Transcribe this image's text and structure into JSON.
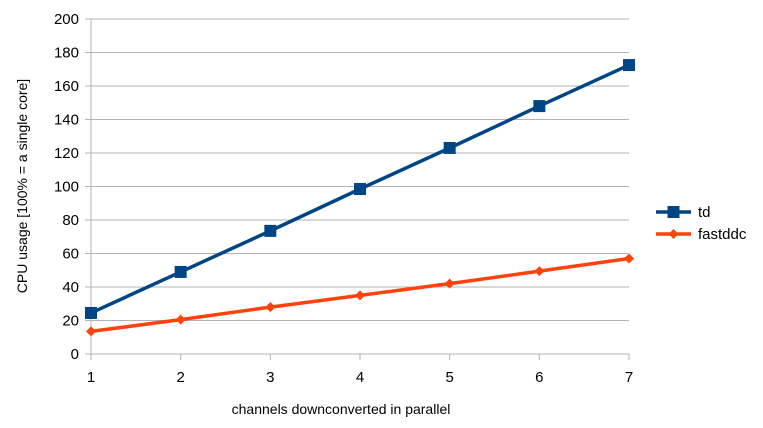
{
  "chart_data": {
    "type": "line",
    "x": [
      1,
      2,
      3,
      4,
      5,
      6,
      7
    ],
    "series": [
      {
        "name": "td",
        "values": [
          24.5,
          49,
          73.5,
          98.5,
          123,
          148,
          172.5
        ],
        "color": "#004586",
        "marker": "square"
      },
      {
        "name": "fastddc",
        "values": [
          13.5,
          20.5,
          28,
          35,
          42,
          49.5,
          57
        ],
        "color": "#ff420e",
        "marker": "diamond"
      }
    ],
    "xlabel": "channels downconverted in parallel",
    "ylabel": "CPU usage [100% = a single core]",
    "xticks": [
      "1",
      "2",
      "3",
      "4",
      "5",
      "6",
      "7"
    ],
    "yticks": [
      "0",
      "20",
      "40",
      "60",
      "80",
      "100",
      "120",
      "140",
      "160",
      "180",
      "200"
    ],
    "xlim": [
      1,
      7
    ],
    "ylim": [
      0,
      200
    ],
    "grid": "horizontal",
    "legend_position": "right"
  }
}
